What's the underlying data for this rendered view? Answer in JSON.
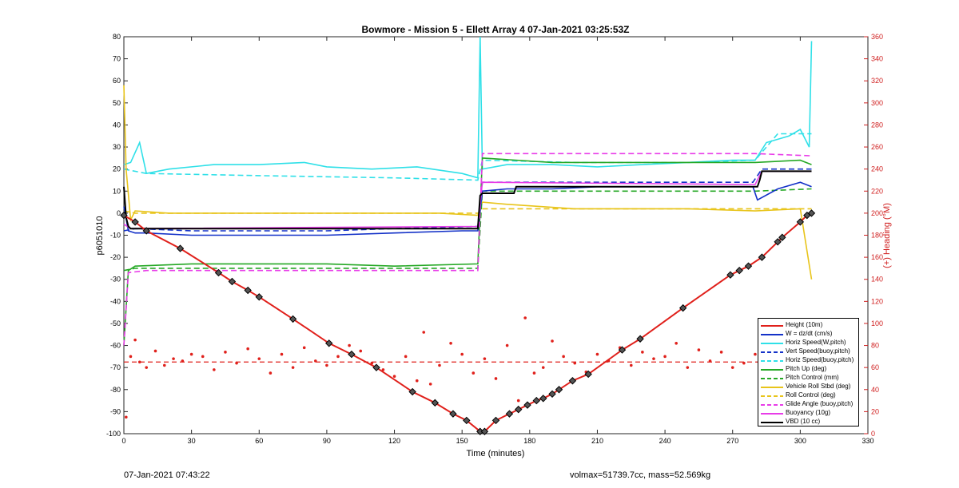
{
  "chart_data": {
    "type": "line",
    "title": "Bowmore - Mission 5 - Ellett Array 4 07-Jan-2021 03:25:53Z",
    "xlabel": "Time (minutes)",
    "ylabel": "p6051010",
    "y2label": "(+) Heading (°M)",
    "xlim": [
      0,
      330
    ],
    "ylim": [
      -100,
      80
    ],
    "y2lim": [
      0,
      360
    ],
    "xticks": [
      "0",
      "30",
      "60",
      "90",
      "120",
      "150",
      "180",
      "210",
      "240",
      "270",
      "300",
      "330"
    ],
    "yticks": [
      "-100",
      "-90",
      "-80",
      "-70",
      "-60",
      "-50",
      "-40",
      "-30",
      "-20",
      "-10",
      "0",
      "10",
      "20",
      "30",
      "40",
      "50",
      "60",
      "70",
      "80"
    ],
    "y2ticks": [
      "0",
      "20",
      "40",
      "60",
      "80",
      "100",
      "120",
      "140",
      "160",
      "180",
      "200",
      "220",
      "240",
      "260",
      "280",
      "300",
      "320",
      "340",
      "360"
    ],
    "legend_position": "bottom-right",
    "series": [
      {
        "name": "Height (10m)",
        "color": "#e0201b",
        "style": "solid",
        "x": [
          0,
          5,
          10,
          25,
          42,
          48,
          55,
          60,
          75,
          91,
          101,
          112,
          128,
          138,
          146,
          152,
          158,
          160,
          165,
          171,
          175,
          179,
          183,
          186,
          190,
          193,
          199,
          206,
          221,
          229,
          248,
          269,
          273,
          277,
          283,
          290,
          292,
          300,
          303,
          305
        ],
        "y": [
          -1,
          -4,
          -8,
          -16,
          -27,
          -31,
          -35,
          -38,
          -48,
          -59,
          -64,
          -70,
          -81,
          -86,
          -91,
          -94,
          -99,
          -99,
          -94,
          -91,
          -89,
          -87,
          -85,
          -84,
          -82,
          -80,
          -76,
          -73,
          -62,
          -57,
          -43,
          -28,
          -26,
          -24,
          -20,
          -13,
          -11,
          -4,
          -1,
          0
        ]
      },
      {
        "name": "W = dz/dt (cm/s)",
        "color": "#1432c8",
        "style": "solid",
        "x": [
          0,
          2,
          5,
          10,
          30,
          60,
          90,
          120,
          150,
          157,
          159,
          170,
          190,
          210,
          240,
          270,
          279,
          281,
          290,
          300,
          305
        ],
        "y": [
          3,
          -8,
          -9,
          -9,
          -10,
          -10,
          -10,
          -9,
          -8,
          -8,
          10,
          11,
          11,
          12,
          12,
          12,
          12,
          6,
          11,
          14,
          12
        ]
      },
      {
        "name": "Horiz Speed(W,pitch)",
        "color": "#2fe0e8",
        "style": "solid",
        "x": [
          0,
          3,
          7,
          10,
          20,
          40,
          60,
          80,
          90,
          110,
          130,
          150,
          157,
          158,
          159,
          170,
          190,
          210,
          230,
          250,
          270,
          280,
          285,
          295,
          300,
          304,
          305
        ],
        "y": [
          22,
          23,
          32,
          18,
          20,
          22,
          22,
          23,
          21,
          20,
          21,
          18,
          16,
          80,
          20,
          22,
          22,
          21,
          22,
          23,
          24,
          24,
          32,
          35,
          38,
          30,
          78
        ]
      },
      {
        "name": "Vert Speed(buoy,pitch)",
        "color": "#1432c8",
        "style": "dashed",
        "x": [
          0,
          5,
          30,
          60,
          90,
          120,
          157,
          159,
          190,
          220,
          250,
          279,
          283,
          305
        ],
        "y": [
          -8,
          -7,
          -8,
          -8,
          -8,
          -7,
          -6,
          14,
          14,
          14,
          14,
          14,
          20,
          20
        ]
      },
      {
        "name": "Horiz Speed(buoy,pitch)",
        "color": "#2fe0e8",
        "style": "dashed",
        "x": [
          0,
          10,
          60,
          120,
          157,
          159,
          200,
          250,
          280,
          290,
          305
        ],
        "y": [
          20,
          18,
          17,
          16,
          15,
          24,
          23,
          23,
          24,
          36,
          36
        ]
      },
      {
        "name": "Pitch Up (deg)",
        "color": "#25a825",
        "style": "solid",
        "x": [
          0,
          2,
          5,
          30,
          60,
          90,
          120,
          157,
          159,
          190,
          220,
          250,
          280,
          300,
          305
        ],
        "y": [
          -60,
          -26,
          -24,
          -23,
          -23,
          -23,
          -24,
          -23,
          25,
          23,
          23,
          23,
          23,
          24,
          22
        ]
      },
      {
        "name": "Pitch Control (mm)",
        "color": "#25a825",
        "style": "dashed",
        "x": [
          0,
          5,
          60,
          120,
          157,
          159,
          200,
          250,
          280,
          305
        ],
        "y": [
          -26,
          -25,
          -25,
          -25,
          -25,
          10,
          10,
          10,
          10,
          11
        ]
      },
      {
        "name": "Vehicle Roll Stbd (deg)",
        "color": "#e8c41a",
        "style": "solid",
        "x": [
          0,
          1,
          3,
          5,
          20,
          60,
          100,
          140,
          157,
          159,
          170,
          200,
          250,
          280,
          300,
          305
        ],
        "y": [
          58,
          20,
          -3,
          1,
          0,
          0,
          0,
          0,
          -1,
          5,
          4,
          2,
          2,
          1,
          2,
          -30
        ]
      },
      {
        "name": "Roll Control (deg)",
        "color": "#e8c41a",
        "style": "dashed",
        "x": [
          0,
          5,
          60,
          120,
          157,
          159,
          200,
          250,
          305
        ],
        "y": [
          1,
          0,
          0,
          0,
          0,
          2,
          2,
          2,
          2
        ]
      },
      {
        "name": "Glide Angle (buoy,pitch)",
        "color": "#e83ce8",
        "style": "dashed",
        "x": [
          0,
          2,
          10,
          60,
          120,
          157,
          159,
          190,
          220,
          250,
          280,
          305
        ],
        "y": [
          -60,
          -27,
          -26,
          -26,
          -26,
          -26,
          27,
          27,
          27,
          27,
          27,
          26
        ]
      },
      {
        "name": "Buoyancy (10g)",
        "color": "#e83ce8",
        "style": "solid",
        "x": [
          0,
          3,
          157,
          159,
          280,
          283,
          305
        ],
        "y": [
          -5,
          -7,
          -6,
          14,
          13,
          19,
          19
        ]
      },
      {
        "name": "VBD (10 cc)",
        "color": "#000000",
        "style": "solid",
        "x": [
          0,
          1,
          2,
          3,
          157,
          158,
          159,
          173,
          174,
          281,
          282,
          283,
          305
        ],
        "y": [
          12,
          -2,
          -6,
          -7,
          -7,
          8,
          9,
          9,
          12,
          12,
          15,
          19,
          19
        ]
      }
    ],
    "heading_series": {
      "color": "#e0201b",
      "style": "dots",
      "axis": "right",
      "x": [
        1,
        3,
        5,
        7,
        10,
        14,
        18,
        22,
        26,
        30,
        35,
        40,
        45,
        50,
        55,
        60,
        65,
        70,
        75,
        80,
        85,
        90,
        95,
        100,
        105,
        110,
        115,
        120,
        125,
        130,
        133,
        136,
        140,
        145,
        150,
        155,
        160,
        165,
        170,
        175,
        178,
        182,
        186,
        190,
        195,
        200,
        205,
        210,
        215,
        220,
        225,
        230,
        235,
        240,
        245,
        250,
        255,
        260,
        265,
        270,
        275,
        280,
        285,
        290,
        295,
        300,
        305
      ],
      "y": [
        15,
        70,
        85,
        65,
        60,
        75,
        62,
        68,
        66,
        72,
        70,
        58,
        74,
        64,
        77,
        68,
        55,
        72,
        60,
        78,
        66,
        62,
        70,
        80,
        75,
        64,
        58,
        52,
        70,
        48,
        92,
        45,
        62,
        82,
        72,
        55,
        68,
        50,
        80,
        30,
        105,
        55,
        60,
        84,
        70,
        64,
        56,
        72,
        66,
        78,
        62,
        74,
        68,
        70,
        82,
        60,
        76,
        66,
        74,
        60,
        64,
        72,
        58,
        86,
        70,
        62,
        74
      ]
    },
    "heading_reference": {
      "value": 65,
      "color": "#e0201b",
      "style": "dashed"
    }
  },
  "footer": {
    "left_timestamp": "07-Jan-2021 07:43:22",
    "right_info": "volmax=51739.7cc, mass=52.569kg"
  }
}
